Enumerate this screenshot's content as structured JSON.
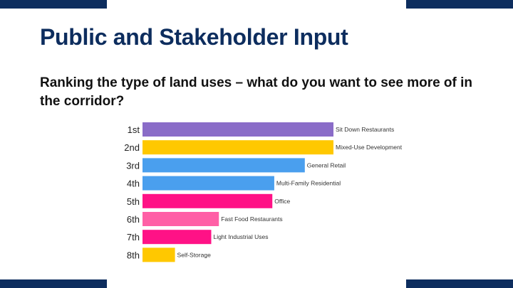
{
  "slide": {
    "title": "Public and Stakeholder Input",
    "subtitle": "Ranking the type of land uses – what do you want to see more of in the corridor?"
  },
  "colors": {
    "frame": "#0d2d5e",
    "title": "#0d2d5e"
  },
  "chart_data": {
    "type": "bar",
    "orientation": "horizontal",
    "title": "",
    "xlabel": "",
    "ylabel": "",
    "ranks": [
      "1st",
      "2nd",
      "3rd",
      "4th",
      "5th",
      "6th",
      "7th",
      "8th"
    ],
    "categories": [
      "Sit Down Restaurants",
      "Mixed-Use Development",
      "General Retail",
      "Multi-Family Residential",
      "Office",
      "Fast Food Restaurants",
      "Light Industrial Uses",
      "Self-Storage"
    ],
    "values": [
      100,
      100,
      85,
      69,
      68,
      40,
      36,
      17
    ],
    "xlim": [
      0,
      100
    ],
    "colors": [
      "#8a6cc8",
      "#ffc800",
      "#4a9fee",
      "#4a9fee",
      "#ff1286",
      "#ff5fa6",
      "#ff1286",
      "#ffc800"
    ],
    "grid": false,
    "legend": "none"
  }
}
